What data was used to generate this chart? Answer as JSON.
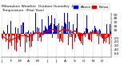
{
  "background_color": "#ffffff",
  "plot_bg_color": "#ffffff",
  "num_points": 365,
  "ylim": [
    -60,
    55
  ],
  "ytick_values": [
    -50,
    -40,
    -30,
    -20,
    -10,
    10,
    20,
    30,
    40,
    50
  ],
  "bar_color_pos": "#0000dd",
  "bar_color_neg": "#dd0000",
  "line_color": "#dd0000",
  "grid_color": "#aaaaaa",
  "title_fontsize": 3.2,
  "tick_label_fontsize": 3.2,
  "legend_fontsize": 3.0,
  "bar_seed": 42,
  "smooth_window": 28
}
